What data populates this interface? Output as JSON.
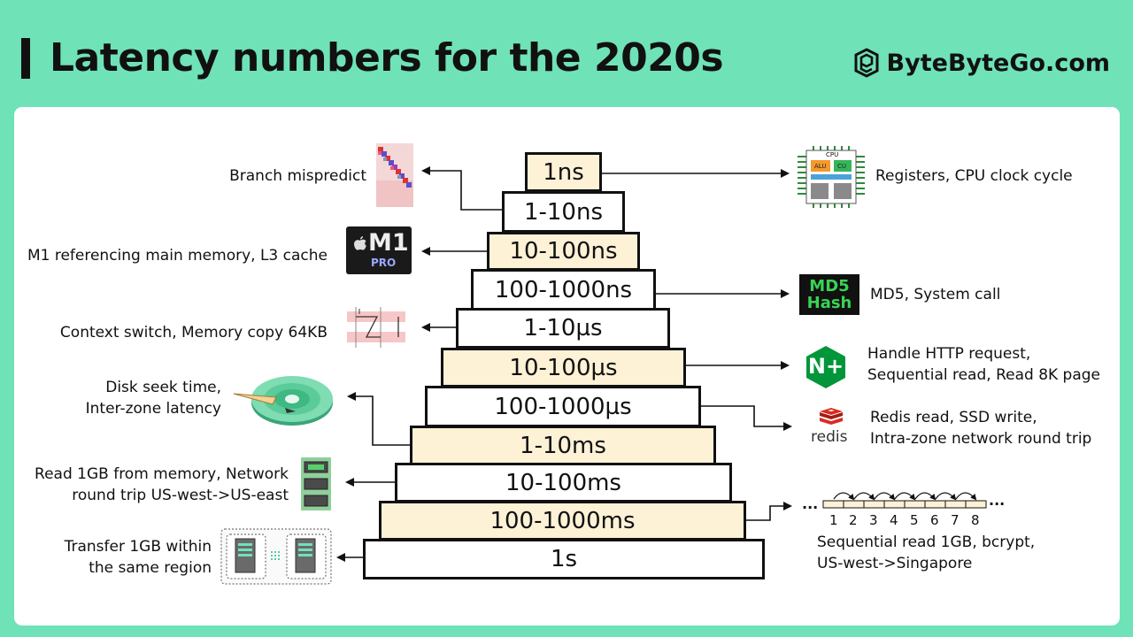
{
  "title": "Latency numbers for the 2020s",
  "brand": "ByteByteGo.com",
  "tiers": [
    {
      "label": "1ns"
    },
    {
      "label": "1-10ns"
    },
    {
      "label": "10-100ns"
    },
    {
      "label": "100-1000ns"
    },
    {
      "label": "1-10µs"
    },
    {
      "label": "10-100µs"
    },
    {
      "label": "100-1000µs"
    },
    {
      "label": "1-10ms"
    },
    {
      "label": "10-100ms"
    },
    {
      "label": "100-1000ms"
    },
    {
      "label": "1s"
    }
  ],
  "labels": {
    "branch": "Branch mispredict",
    "m1": "M1 referencing main memory, L3 cache",
    "context": "Context switch, Memory copy 64KB",
    "disk_1": "Disk seek time,",
    "disk_2": "Inter-zone latency",
    "read_mem_1": "Read 1GB from memory, Network",
    "read_mem_2": "round trip US-west->US-east",
    "transfer_1": "Transfer 1GB within",
    "transfer_2": "the same region",
    "registers": "Registers, CPU clock cycle",
    "md5": "MD5, System call",
    "http_1": "Handle HTTP request,",
    "http_2": "Sequential read, Read 8K page",
    "redis_1": "Redis read, SSD write,",
    "redis_2": "Intra-zone network round trip",
    "seq_1": "Sequential read 1GB, bcrypt,",
    "seq_2": "US-west->Singapore"
  },
  "icon_text": {
    "cpu": "CPU",
    "alu": "ALU",
    "cu": "CU",
    "m1_logo": "M1",
    "m1_sub": "PRO",
    "md5_1": "MD5",
    "md5_2": "Hash",
    "nginx": "N+",
    "redis": "redis",
    "dots": "..."
  },
  "seq_numbers": [
    "1",
    "2",
    "3",
    "4",
    "5",
    "6",
    "7",
    "8"
  ],
  "colors": {
    "background": "#6fe2b8",
    "tier_yellow": "#fdf1d6",
    "md5_green": "#39d353",
    "nginx_green": "#009639",
    "redis_red": "#d82c20"
  }
}
